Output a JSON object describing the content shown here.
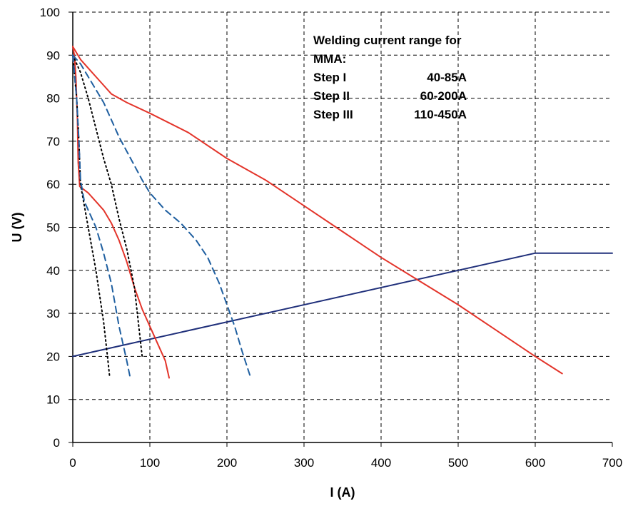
{
  "chart_data": {
    "type": "line",
    "xlabel": "I (A)",
    "ylabel": "U (V)",
    "xlim": [
      0,
      700
    ],
    "ylim": [
      0,
      100
    ],
    "x_ticks": [
      "0",
      "100",
      "200",
      "300",
      "400",
      "500",
      "600",
      "700"
    ],
    "y_ticks": [
      "0",
      "10",
      "20",
      "30",
      "40",
      "50",
      "60",
      "70",
      "80",
      "90",
      "100"
    ],
    "grid": true,
    "annotation": {
      "lines": [
        {
          "label": "Welding current range for",
          "value": ""
        },
        {
          "label": "MMA:",
          "value": ""
        },
        {
          "label": "Step I",
          "value": "40-85A"
        },
        {
          "label": "Step II",
          "value": "60-200A"
        },
        {
          "label": "Step III",
          "value": "110-450A"
        }
      ]
    },
    "series": [
      {
        "style": "solid",
        "color": "#1f2f7a",
        "points": [
          [
            0,
            20
          ],
          [
            600,
            44
          ],
          [
            700,
            44
          ]
        ]
      },
      {
        "style": "solid",
        "color": "#e3342a",
        "points": [
          [
            0,
            92
          ],
          [
            2,
            90
          ],
          [
            4,
            85
          ],
          [
            6,
            75
          ],
          [
            7,
            65
          ],
          [
            9,
            59.5
          ],
          [
            20,
            58
          ],
          [
            30,
            56
          ],
          [
            40,
            54
          ],
          [
            50,
            51
          ],
          [
            60,
            47
          ],
          [
            70,
            42
          ],
          [
            80,
            36
          ],
          [
            90,
            31
          ],
          [
            100,
            27
          ],
          [
            110,
            23
          ],
          [
            120,
            19
          ],
          [
            125,
            15
          ]
        ]
      },
      {
        "style": "solid",
        "color": "#e3342a",
        "points": [
          [
            0,
            92
          ],
          [
            10,
            89
          ],
          [
            20,
            87
          ],
          [
            30,
            85
          ],
          [
            40,
            83
          ],
          [
            50,
            81
          ],
          [
            70,
            79
          ],
          [
            100,
            76.5
          ],
          [
            150,
            72
          ],
          [
            200,
            66
          ],
          [
            250,
            61
          ],
          [
            300,
            55
          ],
          [
            350,
            49
          ],
          [
            400,
            43
          ],
          [
            450,
            37.5
          ],
          [
            500,
            32
          ],
          [
            550,
            26
          ],
          [
            600,
            20
          ],
          [
            635,
            16
          ]
        ]
      },
      {
        "style": "dotted",
        "color": "#000000",
        "points": [
          [
            0,
            90
          ],
          [
            5,
            80
          ],
          [
            8,
            70
          ],
          [
            10,
            60
          ],
          [
            20,
            50
          ],
          [
            30,
            40
          ],
          [
            40,
            28
          ],
          [
            45,
            20
          ],
          [
            48,
            15
          ]
        ]
      },
      {
        "style": "dotted",
        "color": "#000000",
        "points": [
          [
            0,
            90
          ],
          [
            10,
            86
          ],
          [
            20,
            80
          ],
          [
            30,
            73
          ],
          [
            40,
            66
          ],
          [
            50,
            60
          ],
          [
            60,
            52
          ],
          [
            70,
            45
          ],
          [
            80,
            36
          ],
          [
            85,
            28
          ],
          [
            90,
            20
          ]
        ]
      },
      {
        "style": "dashed",
        "color": "#1f5fa0",
        "points": [
          [
            0,
            90
          ],
          [
            5,
            80
          ],
          [
            8,
            70
          ],
          [
            10,
            61
          ],
          [
            15,
            56
          ],
          [
            30,
            50
          ],
          [
            40,
            44
          ],
          [
            50,
            37
          ],
          [
            60,
            27
          ],
          [
            70,
            19
          ],
          [
            74,
            15.5
          ]
        ]
      },
      {
        "style": "dashed",
        "color": "#1f5fa0",
        "points": [
          [
            0,
            90
          ],
          [
            10,
            88
          ],
          [
            20,
            85
          ],
          [
            40,
            79
          ],
          [
            50,
            75
          ],
          [
            60,
            71
          ],
          [
            75,
            66
          ],
          [
            90,
            61
          ],
          [
            100,
            58
          ],
          [
            120,
            54
          ],
          [
            140,
            51
          ],
          [
            160,
            47
          ],
          [
            175,
            43
          ],
          [
            190,
            37
          ],
          [
            200,
            32
          ],
          [
            210,
            27
          ],
          [
            220,
            21
          ],
          [
            230,
            15.5
          ]
        ]
      }
    ]
  }
}
